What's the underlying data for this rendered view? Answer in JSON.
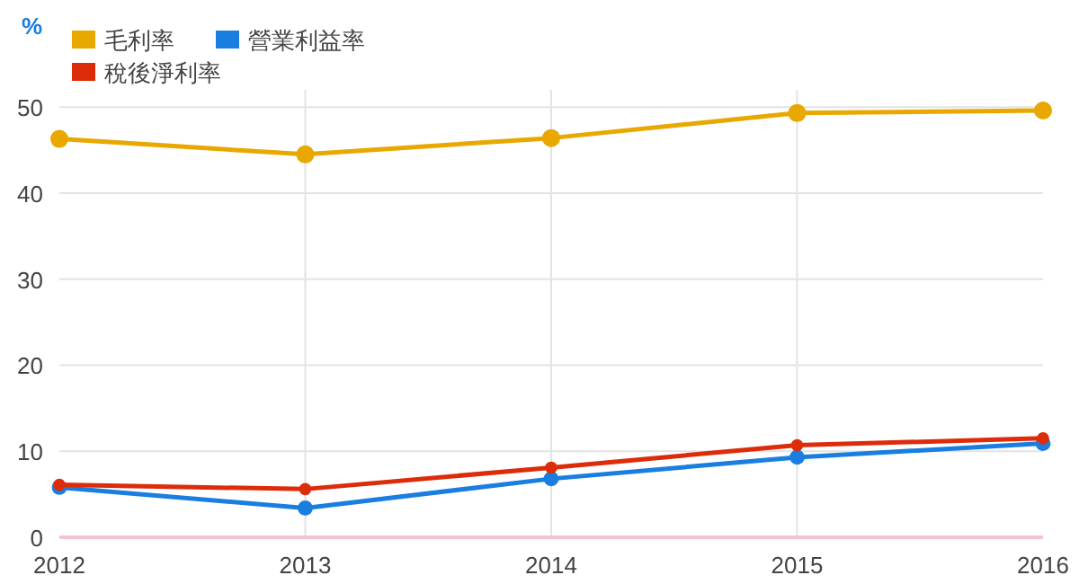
{
  "chart_data": {
    "type": "line",
    "ylabel": "%",
    "categories": [
      "2012",
      "2013",
      "2014",
      "2015",
      "2016"
    ],
    "series": [
      {
        "name": "毛利率",
        "color": "#e8a800",
        "values": [
          46.3,
          44.5,
          46.4,
          49.3,
          49.6
        ]
      },
      {
        "name": "營業利益率",
        "color": "#1a7ee0",
        "values": [
          5.8,
          3.4,
          6.8,
          9.3,
          10.9
        ]
      },
      {
        "name": "稅後淨利率",
        "color": "#dd2c0a",
        "values": [
          6.1,
          5.6,
          8.1,
          10.7,
          11.5
        ]
      }
    ],
    "ylim": [
      0,
      52
    ],
    "yticks": [
      0,
      10,
      20,
      30,
      40,
      50
    ],
    "grid": true,
    "legend": "top left",
    "marker": "circle"
  }
}
